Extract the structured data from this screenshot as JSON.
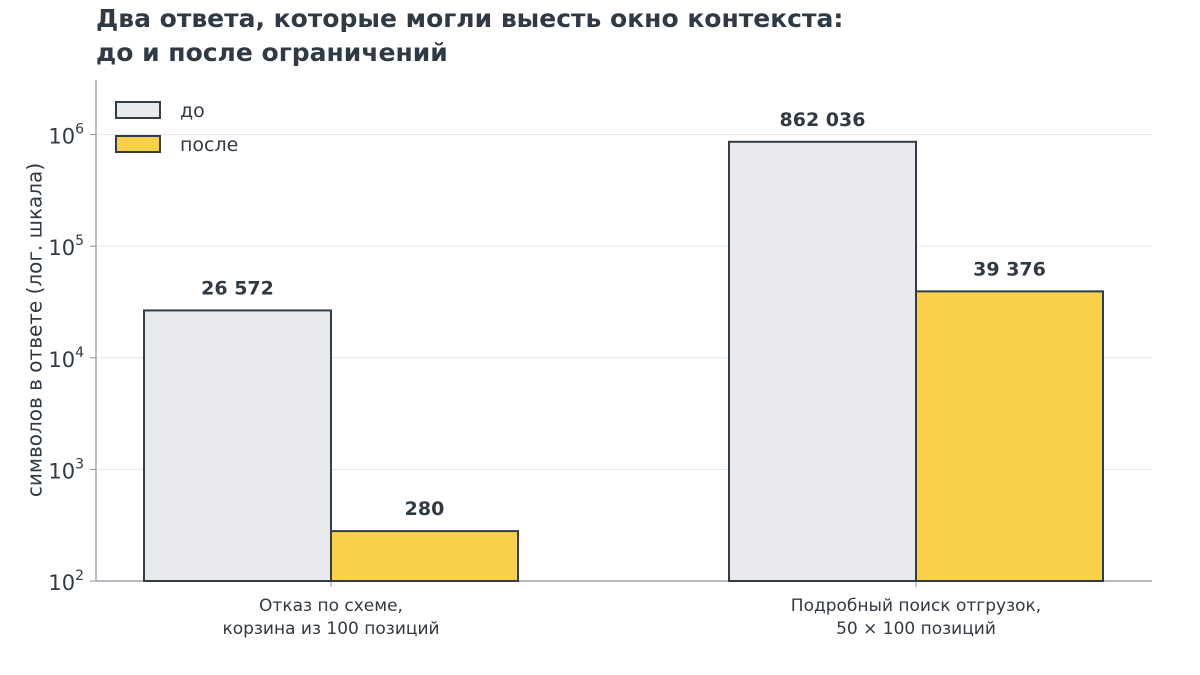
{
  "chart_data": {
    "type": "bar",
    "title_lines": [
      "Два ответа, которые могли выесть окно контекста:",
      "до и после ограничений"
    ],
    "ylabel": "символов в ответе (лог. шкала)",
    "yscale": "log",
    "ylim": [
      100,
      3000000
    ],
    "yticks": [
      {
        "base": "10",
        "exp": "2",
        "value": 100
      },
      {
        "base": "10",
        "exp": "3",
        "value": 1000
      },
      {
        "base": "10",
        "exp": "4",
        "value": 10000
      },
      {
        "base": "10",
        "exp": "5",
        "value": 100000
      },
      {
        "base": "10",
        "exp": "6",
        "value": 1000000
      }
    ],
    "grid": true,
    "legend_position": "top-left",
    "categories": [
      [
        "Отказ по схеме,",
        "корзина из 100 позиций"
      ],
      [
        "Подробный поиск отгрузок,",
        "50 × 100 позиций"
      ]
    ],
    "series": [
      {
        "name": "до",
        "color": "#e8eaee",
        "values": [
          26572,
          862036
        ],
        "labels": [
          "26 572",
          "862 036"
        ]
      },
      {
        "name": "после",
        "color": "#f9d04a",
        "values": [
          280,
          39376
        ],
        "labels": [
          "280",
          "39 376"
        ]
      }
    ]
  }
}
